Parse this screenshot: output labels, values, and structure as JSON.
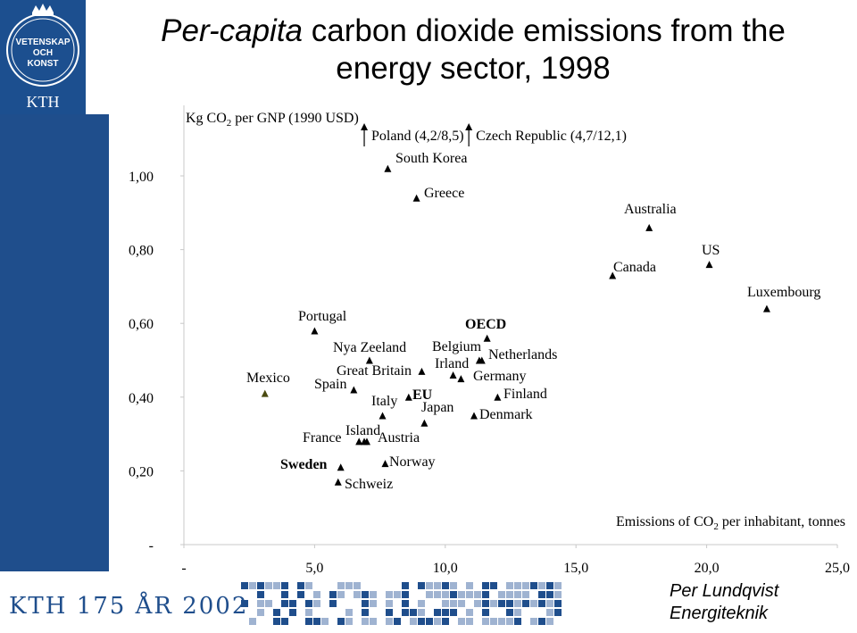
{
  "logo": {
    "seal_text": [
      "VETENSKAP",
      "OCH",
      "KONST"
    ],
    "acronym": "KTH"
  },
  "title": {
    "italic_part": "Per-capita",
    "rest": "carbon dioxide emissions from the",
    "line2": "energy sector, 1998"
  },
  "footer": {
    "anniversary": "KTH 175 ÅR 2002",
    "author_name": "Per Lundqvist",
    "author_dept": "Energiteknik"
  },
  "colors": {
    "sidebar": "#1f4e8c",
    "marker": "#000000",
    "mexico_marker": "#4a4a10"
  },
  "chart_data": {
    "type": "scatter",
    "ylabel_prefix": "Kg CO",
    "ylabel_sub": "2",
    "ylabel_suffix": " per GNP (1990 USD)",
    "xlabel_prefix": "Emissions of CO",
    "xlabel_sub": "2",
    "xlabel_suffix": " per inhabitant, tonnes",
    "xlim": [
      0,
      25
    ],
    "ylim": [
      0,
      1.12
    ],
    "x_ticks": [
      {
        "v": 0,
        "label": "-"
      },
      {
        "v": 5,
        "label": "5,0"
      },
      {
        "v": 10,
        "label": "10,0"
      },
      {
        "v": 15,
        "label": "15,0"
      },
      {
        "v": 20,
        "label": "20,0"
      },
      {
        "v": 25,
        "label": "25,0"
      }
    ],
    "y_ticks": [
      {
        "v": 0,
        "label": "-"
      },
      {
        "v": 0.2,
        "label": "0,20"
      },
      {
        "v": 0.4,
        "label": "0,40"
      },
      {
        "v": 0.6,
        "label": "0,60"
      },
      {
        "v": 0.8,
        "label": "0,80"
      },
      {
        "v": 1.0,
        "label": "1,00"
      }
    ],
    "grid": false,
    "points": [
      {
        "name": "South Korea",
        "x": 7.8,
        "y": 1.02
      },
      {
        "name": "Greece",
        "x": 8.9,
        "y": 0.94
      },
      {
        "name": "Australia",
        "x": 17.8,
        "y": 0.86
      },
      {
        "name": "US",
        "x": 20.1,
        "y": 0.76
      },
      {
        "name": "Canada",
        "x": 16.4,
        "y": 0.73
      },
      {
        "name": "Luxembourg",
        "x": 22.3,
        "y": 0.64
      },
      {
        "name": "Portugal",
        "x": 5.0,
        "y": 0.58
      },
      {
        "name": "OECD",
        "x": 11.6,
        "y": 0.56,
        "bold": true
      },
      {
        "name": "Nya Zeeland",
        "x": 7.1,
        "y": 0.5
      },
      {
        "name": "Belgium",
        "x": 11.4,
        "y": 0.5
      },
      {
        "name": "Netherlands",
        "x": 11.3,
        "y": 0.5
      },
      {
        "name": "Irland",
        "x": 10.3,
        "y": 0.46
      },
      {
        "name": "Great Britain",
        "x": 9.1,
        "y": 0.47
      },
      {
        "name": "Germany",
        "x": 10.6,
        "y": 0.45
      },
      {
        "name": "Spain",
        "x": 6.5,
        "y": 0.42
      },
      {
        "name": "Mexico",
        "x": 3.1,
        "y": 0.41
      },
      {
        "name": "EU",
        "x": 8.6,
        "y": 0.4,
        "bold": true
      },
      {
        "name": "Finland",
        "x": 12.0,
        "y": 0.4
      },
      {
        "name": "Italy",
        "x": 7.6,
        "y": 0.35
      },
      {
        "name": "Japan",
        "x": 9.2,
        "y": 0.33
      },
      {
        "name": "Denmark",
        "x": 11.1,
        "y": 0.35
      },
      {
        "name": "France",
        "x": 6.7,
        "y": 0.28
      },
      {
        "name": "Island",
        "x": 6.9,
        "y": 0.28
      },
      {
        "name": "Austria",
        "x": 7.0,
        "y": 0.28
      },
      {
        "name": "Sweden",
        "x": 6.0,
        "y": 0.21,
        "bold": true
      },
      {
        "name": "Norway",
        "x": 7.7,
        "y": 0.22
      },
      {
        "name": "Schweiz",
        "x": 5.9,
        "y": 0.17
      }
    ],
    "offscale": [
      {
        "name": "Poland",
        "values": "(4,2/8,5)",
        "x": 6.9
      },
      {
        "name": "Czech Republic",
        "values": "(4,7/12,1)",
        "x": 10.9
      }
    ]
  }
}
